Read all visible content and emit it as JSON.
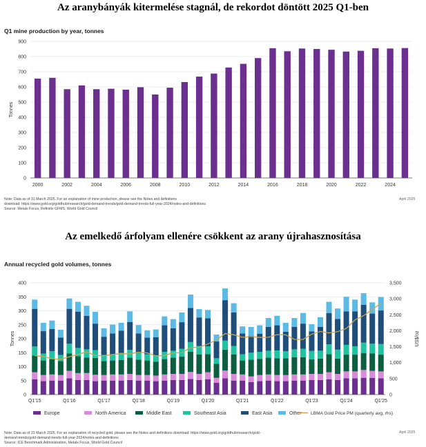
{
  "headline1": "Az aranybányák kitermelése stagnál, de rekordot döntött 2025 Q1-ben",
  "headline2": "Az emelkedő árfolyam ellenére csökkent az arany újrahasznosítása",
  "chart1": {
    "subtitle": "Q1 mine production by year, tonnes",
    "note1": "Note: Data as of 31 March 2025. For an explanation of mine production, please see the Notes and definitions",
    "note2": "download: https://www.gold.org/goldhub/research/gold-demand-trends/gold-demand-trends-full-year-2024/notes-and-definitions",
    "note3": "Source: Metals Focus, Refinitiv GFMS, World Gold Council",
    "date_stamp": "April 2025"
  },
  "chart2": {
    "subtitle": "Annual recycled gold volumes, tonnes",
    "note1": "Note: Data as of 31 March 2025. For an explanation of recycled gold, please see the Notes and definitions download: https://www.gold.org/goldhub/research/gold-",
    "note2": "demand-trends/gold-demand-trends-full-year-2024/notes-and-definitions",
    "note3": "Source: ICE Benchmark Administration, Metals Focus, World Gold Council",
    "date_stamp": "April 2025"
  },
  "chart_data": [
    {
      "type": "bar",
      "title": "Q1 mine production by year, tonnes",
      "ylabel": "Tonnes",
      "ylim": [
        0,
        900
      ],
      "yticks": [
        0,
        100,
        200,
        300,
        400,
        500,
        600,
        700,
        800,
        900
      ],
      "grid": true,
      "color": "#6b2f8f",
      "categories": [
        "2000",
        "2001",
        "2002",
        "2003",
        "2004",
        "2005",
        "2006",
        "2007",
        "2008",
        "2009",
        "2010",
        "2011",
        "2012",
        "2013",
        "2014",
        "2015",
        "2016",
        "2017",
        "2018",
        "2019",
        "2020",
        "2021",
        "2022",
        "2023",
        "2024",
        "2025"
      ],
      "xtick_labels": [
        "2000",
        "2002",
        "2004",
        "2006",
        "2008",
        "2010",
        "2012",
        "2014",
        "2016",
        "2018",
        "2020",
        "2022",
        "2024"
      ],
      "values": [
        655,
        660,
        585,
        610,
        585,
        588,
        582,
        598,
        550,
        595,
        632,
        668,
        688,
        728,
        752,
        790,
        855,
        835,
        853,
        850,
        845,
        833,
        838,
        855,
        853,
        856
      ]
    },
    {
      "type": "bar",
      "title": "Annual recycled gold volumes, tonnes",
      "ylabel": "Tonnes",
      "y2label": "US$/oz",
      "ylim": [
        0,
        400
      ],
      "y2lim": [
        0,
        3500
      ],
      "yticks": [
        0,
        50,
        100,
        150,
        200,
        250,
        300,
        350,
        400
      ],
      "y2ticks": [
        0,
        500,
        1000,
        1500,
        2000,
        2500,
        3000,
        3500
      ],
      "y2tick_labels": [
        "0",
        "500",
        "1,000",
        "1,500",
        "2,000",
        "2,500",
        "3,000",
        "3,500"
      ],
      "grid": true,
      "legend_position": "bottom",
      "categories": [
        "Q1'15",
        "Q2'15",
        "Q3'15",
        "Q4'15",
        "Q1'16",
        "Q2'16",
        "Q3'16",
        "Q4'16",
        "Q1'17",
        "Q2'17",
        "Q3'17",
        "Q4'17",
        "Q1'18",
        "Q2'18",
        "Q3'18",
        "Q4'18",
        "Q1'19",
        "Q2'19",
        "Q3'19",
        "Q4'19",
        "Q1'20",
        "Q2'20",
        "Q3'20",
        "Q4'20",
        "Q1'21",
        "Q2'21",
        "Q3'21",
        "Q4'21",
        "Q1'22",
        "Q2'22",
        "Q3'22",
        "Q4'22",
        "Q1'23",
        "Q2'23",
        "Q3'23",
        "Q4'23",
        "Q1'24",
        "Q2'24",
        "Q3'24",
        "Q4'24",
        "Q1'25"
      ],
      "xtick_labels": [
        "Q1'15",
        "Q1'16",
        "Q1'17",
        "Q1'18",
        "Q1'19",
        "Q1'20",
        "Q1'21",
        "Q1'22",
        "Q1'23",
        "Q1'24",
        "Q1'25"
      ],
      "series": [
        {
          "name": "Europe",
          "color": "#6b2f8f",
          "values": [
            55,
            48,
            50,
            50,
            58,
            52,
            52,
            48,
            50,
            50,
            50,
            52,
            50,
            50,
            48,
            50,
            52,
            52,
            56,
            52,
            55,
            42,
            58,
            50,
            50,
            45,
            48,
            50,
            48,
            48,
            50,
            50,
            52,
            52,
            55,
            52,
            58,
            58,
            60,
            60,
            58
          ]
        },
        {
          "name": "North America",
          "color": "#d98ad9",
          "values": [
            25,
            22,
            22,
            20,
            27,
            25,
            25,
            23,
            20,
            22,
            22,
            22,
            20,
            20,
            20,
            22,
            22,
            22,
            25,
            22,
            25,
            18,
            28,
            24,
            22,
            20,
            22,
            22,
            22,
            22,
            22,
            22,
            22,
            22,
            25,
            22,
            25,
            25,
            28,
            25,
            25
          ]
        },
        {
          "name": "Middle East",
          "color": "#0b5e3f",
          "values": [
            60,
            52,
            55,
            50,
            62,
            60,
            55,
            60,
            50,
            50,
            52,
            58,
            55,
            52,
            50,
            55,
            58,
            62,
            72,
            70,
            65,
            50,
            75,
            70,
            50,
            60,
            58,
            60,
            60,
            60,
            62,
            62,
            52,
            55,
            65,
            55,
            60,
            60,
            60,
            62,
            60
          ]
        },
        {
          "name": "Southeast Asia",
          "color": "#1fc3a0",
          "values": [
            32,
            25,
            28,
            22,
            35,
            30,
            30,
            28,
            22,
            22,
            25,
            28,
            24,
            22,
            22,
            26,
            25,
            28,
            35,
            30,
            28,
            20,
            32,
            30,
            22,
            25,
            25,
            25,
            28,
            25,
            28,
            30,
            30,
            28,
            35,
            32,
            35,
            30,
            38,
            35,
            38
          ]
        },
        {
          "name": "East Asia",
          "color": "#1f4e7a",
          "values": [
            135,
            80,
            80,
            62,
            125,
            130,
            120,
            95,
            65,
            75,
            80,
            100,
            70,
            60,
            65,
            95,
            80,
            95,
            122,
            102,
            100,
            60,
            145,
            120,
            75,
            60,
            65,
            85,
            90,
            70,
            80,
            90,
            70,
            85,
            112,
            110,
            120,
            125,
            135,
            108,
            120
          ]
        },
        {
          "name": "Other",
          "color": "#5bbbe6",
          "values": [
            33,
            30,
            30,
            28,
            37,
            35,
            36,
            42,
            30,
            32,
            28,
            38,
            30,
            26,
            28,
            32,
            33,
            35,
            48,
            30,
            30,
            25,
            42,
            33,
            25,
            32,
            30,
            32,
            34,
            32,
            32,
            38,
            26,
            35,
            40,
            37,
            52,
            42,
            42,
            40,
            48
          ]
        }
      ],
      "line_series": {
        "name": "LBMA Gold Price PM (quarterly avg, rhs)",
        "color": "#c9a44a",
        "axis": "right",
        "values": [
          1219,
          1192,
          1124,
          1106,
          1183,
          1260,
          1335,
          1222,
          1219,
          1257,
          1278,
          1275,
          1329,
          1306,
          1213,
          1226,
          1304,
          1310,
          1472,
          1481,
          1583,
          1711,
          1909,
          1874,
          1794,
          1816,
          1789,
          1795,
          1877,
          1871,
          1729,
          1726,
          1890,
          1976,
          1929,
          1971,
          2070,
          2338,
          2474,
          2663,
          2860
        ]
      }
    }
  ]
}
